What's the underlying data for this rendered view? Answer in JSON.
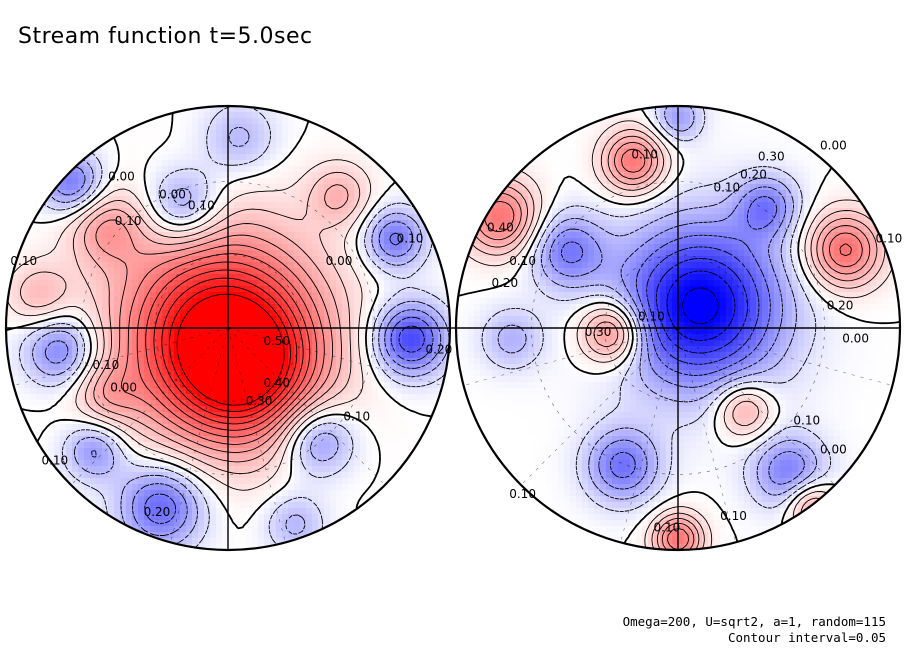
{
  "title": "Stream function t=5.0sec",
  "footer": {
    "params": "Omega=200, U=sqrt2, a=1, random=115",
    "interval": "Contour interval=0.05"
  },
  "colors": {
    "positive": "#ff0000",
    "negative": "#0000ff",
    "zero": "#ffffff"
  },
  "chart_data": {
    "type": "heatmap",
    "title": "Stream function t=5.0sec",
    "contour_interval": 0.05,
    "color_range": [
      -0.4,
      0.55
    ],
    "panels": [
      {
        "name": "left-hemisphere",
        "features": [
          {
            "kind": "high",
            "u": -0.04,
            "v": 0.02,
            "amp": 0.55,
            "s": 0.32
          },
          {
            "kind": "high",
            "u": 0.08,
            "v": 0.2,
            "amp": 0.3,
            "s": 0.22
          },
          {
            "kind": "high",
            "u": -0.55,
            "v": -0.45,
            "amp": 0.18,
            "s": 0.12
          },
          {
            "kind": "high",
            "u": 0.5,
            "v": -0.6,
            "amp": 0.15,
            "s": 0.1
          },
          {
            "kind": "high",
            "u": -0.85,
            "v": -0.15,
            "amp": 0.14,
            "s": 0.1
          },
          {
            "kind": "high",
            "u": -0.55,
            "v": 0.3,
            "amp": 0.12,
            "s": 0.1
          },
          {
            "kind": "low",
            "u": -0.2,
            "v": -0.55,
            "amp": -0.2,
            "s": 0.12
          },
          {
            "kind": "low",
            "u": 0.82,
            "v": 0.05,
            "amp": -0.3,
            "s": 0.12
          },
          {
            "kind": "low",
            "u": 0.75,
            "v": -0.4,
            "amp": -0.22,
            "s": 0.1
          },
          {
            "kind": "low",
            "u": 0.4,
            "v": 0.5,
            "amp": -0.22,
            "s": 0.12
          },
          {
            "kind": "low",
            "u": -0.3,
            "v": 0.8,
            "amp": -0.25,
            "s": 0.14
          },
          {
            "kind": "low",
            "u": -0.75,
            "v": 0.1,
            "amp": -0.22,
            "s": 0.12
          },
          {
            "kind": "low",
            "u": -0.6,
            "v": 0.55,
            "amp": -0.18,
            "s": 0.1
          },
          {
            "kind": "low",
            "u": 0.05,
            "v": -0.85,
            "amp": -0.12,
            "s": 0.12
          },
          {
            "kind": "low",
            "u": -0.7,
            "v": -0.65,
            "amp": -0.22,
            "s": 0.1
          },
          {
            "kind": "low",
            "u": 0.3,
            "v": 0.88,
            "amp": -0.12,
            "s": 0.1
          }
        ],
        "labels": [
          {
            "text": "0.00",
            "u": -0.48,
            "v": -0.68
          },
          {
            "text": "0.00",
            "u": -0.25,
            "v": -0.6
          },
          {
            "text": "0.10",
            "u": -0.12,
            "v": -0.55
          },
          {
            "text": "0.10",
            "u": -0.45,
            "v": -0.48
          },
          {
            "text": "0.00",
            "u": 0.5,
            "v": -0.3
          },
          {
            "text": "0.10",
            "u": 0.82,
            "v": -0.4
          },
          {
            "text": "0.50",
            "u": 0.22,
            "v": 0.06
          },
          {
            "text": "0.40",
            "u": 0.22,
            "v": 0.25
          },
          {
            "text": "0.30",
            "u": 0.14,
            "v": 0.33
          },
          {
            "text": "0.10",
            "u": -0.55,
            "v": 0.17
          },
          {
            "text": "0.00",
            "u": -0.47,
            "v": 0.27
          },
          {
            "text": "0.10",
            "u": 0.58,
            "v": 0.4
          },
          {
            "text": "0.20",
            "u": -0.32,
            "v": 0.83
          },
          {
            "text": "0.10",
            "u": -0.78,
            "v": 0.6
          },
          {
            "text": "0.20",
            "u": 0.95,
            "v": 0.1
          },
          {
            "text": "0.10",
            "u": -0.92,
            "v": -0.3
          }
        ]
      },
      {
        "name": "right-hemisphere",
        "features": [
          {
            "kind": "low",
            "u": 0.1,
            "v": -0.1,
            "amp": -0.42,
            "s": 0.26
          },
          {
            "kind": "low",
            "u": -0.5,
            "v": -0.35,
            "amp": -0.2,
            "s": 0.12
          },
          {
            "kind": "low",
            "u": 0.4,
            "v": -0.55,
            "amp": -0.18,
            "s": 0.1
          },
          {
            "kind": "low",
            "u": 0.5,
            "v": 0.65,
            "amp": -0.2,
            "s": 0.12
          },
          {
            "kind": "low",
            "u": -0.25,
            "v": 0.62,
            "amp": -0.22,
            "s": 0.12
          },
          {
            "kind": "low",
            "u": -0.75,
            "v": 0.05,
            "amp": -0.12,
            "s": 0.1
          },
          {
            "kind": "low",
            "u": 0.0,
            "v": -0.95,
            "amp": -0.15,
            "s": 0.08
          },
          {
            "kind": "high",
            "u": -0.3,
            "v": 0.02,
            "amp": 0.3,
            "s": 0.1
          },
          {
            "kind": "high",
            "u": 0.3,
            "v": 0.37,
            "amp": 0.2,
            "s": 0.09
          },
          {
            "kind": "high",
            "u": 0.75,
            "v": -0.35,
            "amp": 0.32,
            "s": 0.12
          },
          {
            "kind": "high",
            "u": -0.2,
            "v": -0.75,
            "amp": 0.3,
            "s": 0.1
          },
          {
            "kind": "high",
            "u": -0.8,
            "v": -0.5,
            "amp": 0.3,
            "s": 0.12
          },
          {
            "kind": "high",
            "u": 0.0,
            "v": 0.95,
            "amp": 0.3,
            "s": 0.08
          },
          {
            "kind": "high",
            "u": 0.6,
            "v": 0.8,
            "amp": 0.2,
            "s": 0.08
          }
        ],
        "labels": [
          {
            "text": "0.30",
            "u": 0.42,
            "v": -0.77
          },
          {
            "text": "0.20",
            "u": 0.34,
            "v": -0.69
          },
          {
            "text": "0.10",
            "u": 0.22,
            "v": -0.63
          },
          {
            "text": "0.10",
            "u": -0.15,
            "v": -0.78
          },
          {
            "text": "0.00",
            "u": 0.7,
            "v": -0.82
          },
          {
            "text": "0.40",
            "u": -0.8,
            "v": -0.45
          },
          {
            "text": "0.20",
            "u": -0.78,
            "v": -0.2
          },
          {
            "text": "0.10",
            "u": -0.7,
            "v": -0.3
          },
          {
            "text": "0.20",
            "u": 0.73,
            "v": -0.1
          },
          {
            "text": "0.00",
            "u": 0.8,
            "v": 0.05
          },
          {
            "text": "0.10",
            "u": 0.95,
            "v": -0.4
          },
          {
            "text": "0.30",
            "u": -0.36,
            "v": 0.02
          },
          {
            "text": "0.10",
            "u": -0.12,
            "v": -0.05
          },
          {
            "text": "0.10",
            "u": 0.58,
            "v": 0.42
          },
          {
            "text": "0.00",
            "u": 0.7,
            "v": 0.55
          },
          {
            "text": "0.10",
            "u": -0.7,
            "v": 0.75
          },
          {
            "text": "0.10",
            "u": -0.05,
            "v": 0.9
          },
          {
            "text": "0.10",
            "u": 0.25,
            "v": 0.85
          }
        ]
      }
    ]
  }
}
